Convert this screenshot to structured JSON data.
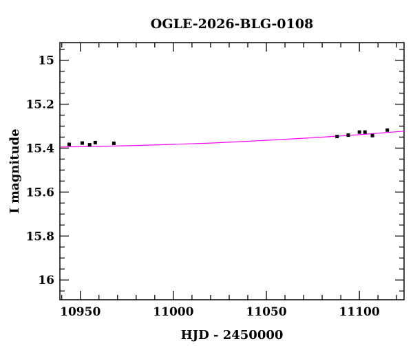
{
  "chart_data": {
    "type": "scatter",
    "title": "OGLE-2026-BLG-0108",
    "xlabel": "HJD - 2450000",
    "ylabel": "I magnitude",
    "xlim": [
      10939,
      11124
    ],
    "ylim": [
      16.09,
      14.92
    ],
    "y_inverted": true,
    "grid": false,
    "x_ticks": [
      10950,
      11000,
      11050,
      11100
    ],
    "x_tick_labels": [
      "10950",
      "11000",
      "11050",
      "11100"
    ],
    "y_ticks": [
      15,
      15.2,
      15.4,
      15.6,
      15.8,
      16
    ],
    "y_tick_labels": [
      "15",
      "15.2",
      "15.4",
      "15.6",
      "15.8",
      "16"
    ],
    "series": [
      {
        "type": "scatter",
        "color": "#000000",
        "x": [
          10944,
          10951,
          10955,
          10958,
          10968,
          11088,
          11094,
          11100,
          11103,
          11107,
          11115
        ],
        "y": [
          15.383,
          15.377,
          15.385,
          15.375,
          15.378,
          15.347,
          15.341,
          15.327,
          15.327,
          15.343,
          15.318
        ]
      },
      {
        "type": "line",
        "color": "#ff00ff",
        "x": [
          10939,
          10960,
          10980,
          11000,
          11020,
          11040,
          11060,
          11080,
          11100,
          11124
        ],
        "y": [
          15.395,
          15.392,
          15.388,
          15.383,
          15.377,
          15.369,
          15.36,
          15.35,
          15.339,
          15.323
        ]
      }
    ]
  }
}
